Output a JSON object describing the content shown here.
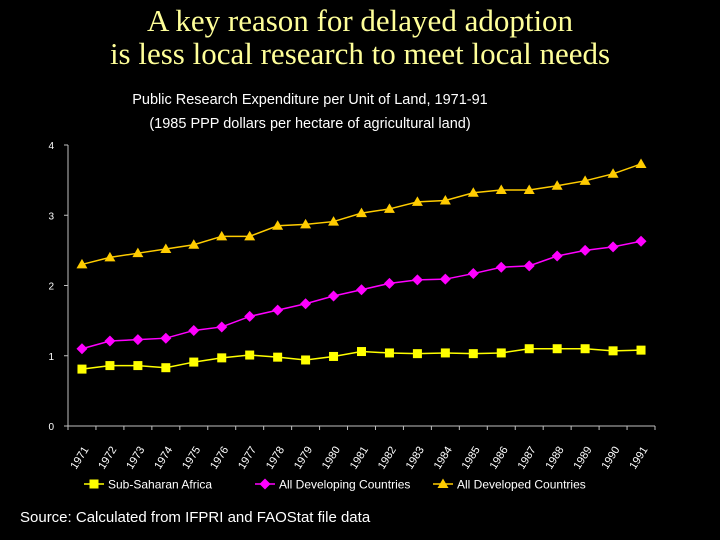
{
  "slide": {
    "title_line1": "A key reason for delayed adoption",
    "title_line2": "is less local research to meet local needs",
    "source": "Source:  Calculated from IFPRI and FAOStat file data"
  },
  "colors": {
    "background": "#000000",
    "title": "#FFFF99",
    "text": "#FFFFFF",
    "sub_saharan": "#FFFF00",
    "developing": "#FF00FF",
    "developed": "#FFCC00"
  },
  "chart_data": {
    "type": "line",
    "title": "Public Research Expenditure per Unit of Land, 1971-91",
    "subtitle": "(1985 PPP dollars per hectare of agricultural land)",
    "xlabel": "",
    "ylabel": "",
    "ylim": [
      0,
      4
    ],
    "yticks": [
      "0",
      "1",
      "2",
      "3",
      "4"
    ],
    "categories": [
      "1971",
      "1972",
      "1973",
      "1974",
      "1975",
      "1976",
      "1977",
      "1978",
      "1979",
      "1980",
      "1981",
      "1982",
      "1983",
      "1984",
      "1985",
      "1986",
      "1987",
      "1988",
      "1989",
      "1990",
      "1991"
    ],
    "grid": false,
    "legend_position": "bottom",
    "series": [
      {
        "name": "Sub-Saharan Africa",
        "marker": "square",
        "values": [
          0.81,
          0.86,
          0.86,
          0.83,
          0.91,
          0.97,
          1.01,
          0.98,
          0.94,
          0.99,
          1.06,
          1.04,
          1.03,
          1.04,
          1.03,
          1.04,
          1.1,
          1.1,
          1.1,
          1.07,
          1.08
        ]
      },
      {
        "name": "All Developing Countries",
        "marker": "diamond",
        "values": [
          1.1,
          1.21,
          1.23,
          1.25,
          1.36,
          1.41,
          1.56,
          1.65,
          1.74,
          1.85,
          1.94,
          2.03,
          2.08,
          2.09,
          2.17,
          2.26,
          2.28,
          2.42,
          2.5,
          2.55,
          2.63
        ]
      },
      {
        "name": "All Developed Countries",
        "marker": "triangle",
        "values": [
          2.3,
          2.4,
          2.46,
          2.52,
          2.58,
          2.7,
          2.7,
          2.85,
          2.87,
          2.91,
          3.03,
          3.09,
          3.19,
          3.21,
          3.32,
          3.36,
          3.36,
          3.42,
          3.49,
          3.59,
          3.73
        ]
      }
    ]
  }
}
